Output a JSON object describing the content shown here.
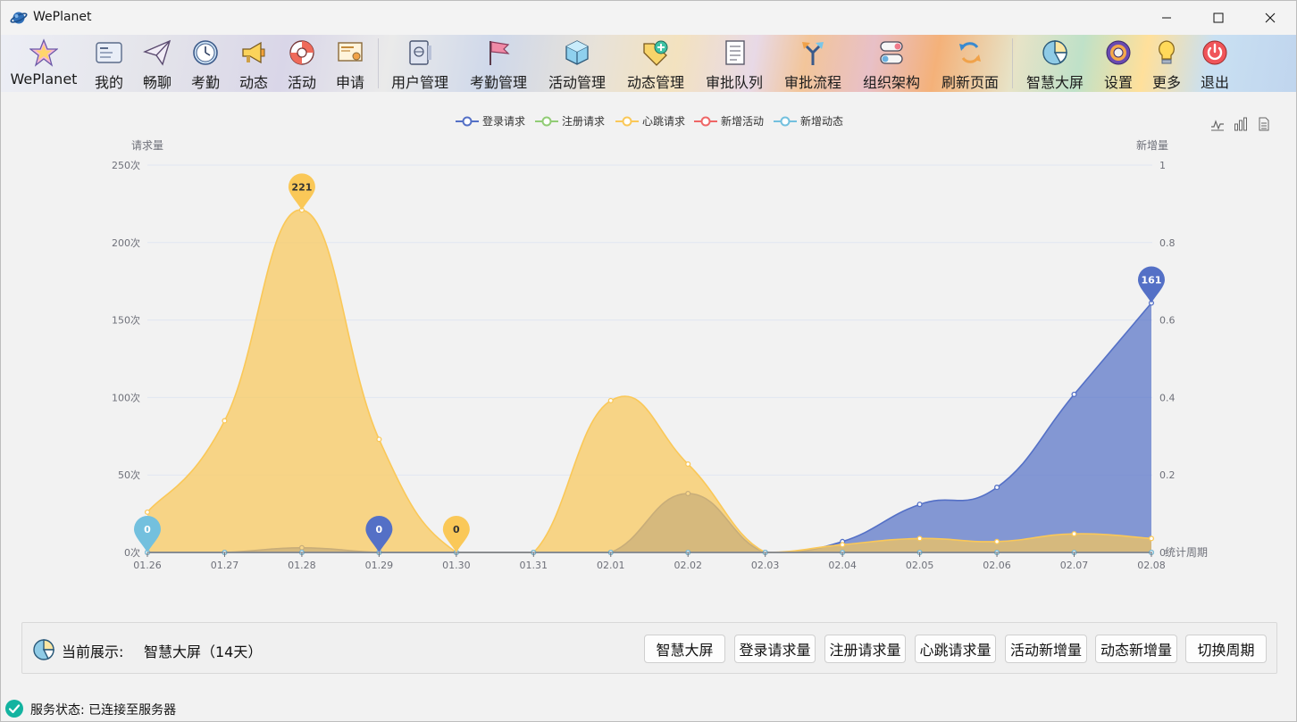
{
  "window": {
    "title": "WePlanet"
  },
  "toolbar": {
    "items": [
      {
        "key": "weplanet",
        "label": "WePlanet",
        "icon": "star-icon"
      },
      {
        "key": "me",
        "label": "我的",
        "icon": "id-card-icon"
      },
      {
        "key": "chat",
        "label": "畅聊",
        "icon": "paper-plane-icon"
      },
      {
        "key": "attendance",
        "label": "考勤",
        "icon": "clock-icon"
      },
      {
        "key": "moments",
        "label": "动态",
        "icon": "megaphone-icon"
      },
      {
        "key": "activity",
        "label": "活动",
        "icon": "lifebuoy-icon"
      },
      {
        "key": "apply",
        "label": "申请",
        "icon": "certificate-icon"
      },
      {
        "key": "user-mgmt",
        "label": "用户管理",
        "icon": "passport-icon"
      },
      {
        "key": "attendance-mgmt",
        "label": "考勤管理",
        "icon": "flag-icon"
      },
      {
        "key": "activity-mgmt",
        "label": "活动管理",
        "icon": "cube-icon"
      },
      {
        "key": "moments-mgmt",
        "label": "动态管理",
        "icon": "tag-add-icon"
      },
      {
        "key": "approval-queue",
        "label": "审批队列",
        "icon": "document-list-icon"
      },
      {
        "key": "approval-flow",
        "label": "审批流程",
        "icon": "arrows-split-icon"
      },
      {
        "key": "org",
        "label": "组织架构",
        "icon": "toggles-icon"
      },
      {
        "key": "refresh",
        "label": "刷新页面",
        "icon": "refresh-icon"
      },
      {
        "key": "dashboard",
        "label": "智慧大屏",
        "icon": "pie-chart-icon"
      },
      {
        "key": "settings",
        "label": "设置",
        "icon": "gear-icon"
      },
      {
        "key": "more",
        "label": "更多",
        "icon": "lightbulb-icon"
      },
      {
        "key": "exit",
        "label": "退出",
        "icon": "power-icon"
      }
    ]
  },
  "colors": {
    "login": "#5470c6",
    "register": "#91cc75",
    "heartbeat": "#fac858",
    "new_activity": "#ee6666",
    "new_moment": "#73c0de"
  },
  "chart_data": {
    "type": "area",
    "legend_placement": "top-center",
    "ylabel": "请求量",
    "ylabel_right": "新增量",
    "xlabel": "统计周期",
    "x": [
      "01.26",
      "01.27",
      "01.28",
      "01.29",
      "01.30",
      "01.31",
      "02.01",
      "02.02",
      "02.03",
      "02.04",
      "02.05",
      "02.06",
      "02.07",
      "02.08"
    ],
    "yticks": [
      "0次",
      "50次",
      "100次",
      "150次",
      "200次",
      "250次"
    ],
    "ylim": [
      0,
      250
    ],
    "yticks_right": [
      "0",
      "0.2",
      "0.4",
      "0.6",
      "0.8",
      "1"
    ],
    "ylim_right": [
      0,
      1
    ],
    "series": [
      {
        "name": "登录请求",
        "values": [
          0,
          0,
          3,
          0,
          0,
          0,
          0,
          38,
          0,
          7,
          31,
          42,
          102,
          161
        ],
        "markers": [
          {
            "index": 3,
            "label": "0"
          },
          {
            "index": 13,
            "label": "161"
          }
        ]
      },
      {
        "name": "注册请求",
        "values": [
          0,
          0,
          0,
          0,
          0,
          0,
          0,
          0,
          0,
          0,
          0,
          0,
          0,
          0
        ],
        "markers": []
      },
      {
        "name": "心跳请求",
        "values": [
          26,
          85,
          221,
          73,
          0,
          0,
          98,
          57,
          0,
          5,
          9,
          7,
          12,
          9
        ],
        "markers": [
          {
            "index": 2,
            "label": "221"
          },
          {
            "index": 4,
            "label": "0"
          }
        ]
      },
      {
        "name": "新增活动",
        "values": [
          0,
          0,
          0,
          0,
          0,
          0,
          0,
          0,
          0,
          0,
          0,
          0,
          0,
          0
        ],
        "markers": []
      },
      {
        "name": "新增动态",
        "values": [
          0,
          0,
          0,
          0,
          0,
          0,
          0,
          0,
          0,
          0,
          0,
          0,
          0,
          0
        ],
        "markers": [
          {
            "index": 0,
            "label": "0"
          }
        ]
      }
    ]
  },
  "chart_tools": [
    "line-chart-icon",
    "bar-chart-icon",
    "data-view-icon"
  ],
  "panel": {
    "current_label": "当前展示:",
    "current_value": "智慧大屏（14天）",
    "buttons": [
      "智慧大屏",
      "登录请求量",
      "注册请求量",
      "心跳请求量",
      "活动新增量",
      "动态新增量",
      "切换周期"
    ]
  },
  "status": {
    "text": "服务状态: 已连接至服务器"
  }
}
